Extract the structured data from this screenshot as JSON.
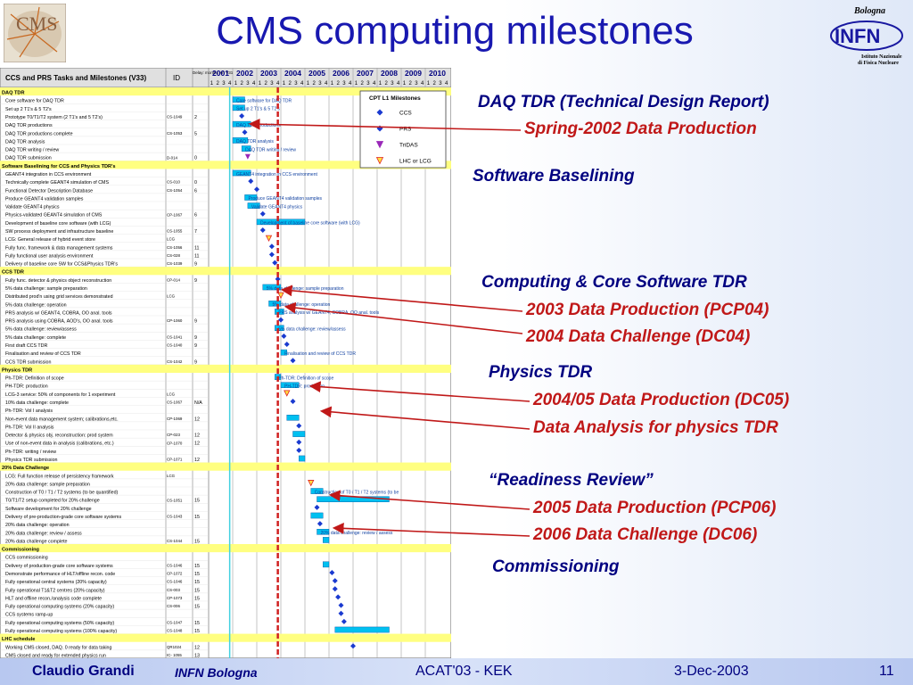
{
  "slide": {
    "title": "CMS computing milestones",
    "logos": {
      "cms_text": "CMS",
      "infn_top": "Bologna",
      "infn_name": "INFN",
      "infn_sub1": "Istituto Nazionale",
      "infn_sub2": "di Fisica Nucleare"
    }
  },
  "gantt": {
    "header_title": "CCS and PRS Tasks and Milestones (V33)",
    "id_label": "ID",
    "delay_label": "Delay: months wrt V31",
    "years": [
      "2001",
      "2002",
      "2003",
      "2004",
      "2005",
      "2006",
      "2007",
      "2008",
      "2009",
      "2010"
    ],
    "quarter_labels": [
      "1",
      "2",
      "3",
      "4"
    ],
    "legend": {
      "title": "CPT L1 Milestones",
      "items": [
        {
          "label": "CCS",
          "color": "#1a3ad0",
          "shape": "diamond"
        },
        {
          "label": "PRS",
          "color": "#1a3ad0",
          "shape": "diamond"
        },
        {
          "label": "TriDAS",
          "color": "#9a28b8",
          "shape": "triangle"
        },
        {
          "label": "LHC or LCG",
          "color": "#e02020",
          "shape": "triangle"
        }
      ]
    },
    "rows": [
      {
        "type": "section",
        "name": "DAQ TDR"
      },
      {
        "name": "Core software for DAQ TDR",
        "id": "",
        "delay": "",
        "bar": "Core software for DAQ TDR"
      },
      {
        "name": "Set up 2 T1's & 5 T2's",
        "id": "",
        "delay": "",
        "bar": "Set up 2 T1's & 5 T2's"
      },
      {
        "name": "Prototype T0/T1/T2 system (2 T1's and 5 T2's)",
        "id": "CS-1049",
        "delay": "2",
        "bar": ""
      },
      {
        "name": "DAQ TDR productions",
        "id": "",
        "delay": "",
        "bar": "DAQ TDR productions"
      },
      {
        "name": "DAQ TDR productions complete",
        "id": "CS-1053",
        "delay": "5",
        "bar": ""
      },
      {
        "name": "DAQ TDR  analysis",
        "id": "",
        "delay": "",
        "bar": "DAQ TDR  analysis"
      },
      {
        "name": "DAQ TDR writing / review",
        "id": "",
        "delay": "",
        "bar": "DAQ TDR writing / review"
      },
      {
        "name": "DAQ TDR submission",
        "id": "D-014",
        "delay": "0",
        "bar": ""
      },
      {
        "type": "section",
        "name": "Software Baselining for CCS and Physics TDR's"
      },
      {
        "name": "GEANT4 integration in CCS environment",
        "id": "",
        "delay": "",
        "bar": "GEANT4 integration in CCS environment"
      },
      {
        "name": "Technically complete GEANT4 simulation of CMS",
        "id": "CS-010",
        "delay": "0",
        "bar": ""
      },
      {
        "name": "Functional Detector Description Database",
        "id": "CS-1054",
        "delay": "6",
        "bar": ""
      },
      {
        "name": "Produce GEANT4 validation samples",
        "id": "",
        "delay": "",
        "bar": "Produce GEANT4 validation samples"
      },
      {
        "name": "Validate GEANT4 physics",
        "id": "",
        "delay": "",
        "bar": "Validate GEANT4 physics"
      },
      {
        "name": "Physics-validated GEANT4 simulation of CMS",
        "id": "CP-1067",
        "delay": "6",
        "bar": ""
      },
      {
        "name": "Development of baseline core software (with LCG)",
        "id": "",
        "delay": "",
        "bar": "Development of baseline core software (with LCG)"
      },
      {
        "name": "SW process deployment and infrastructure baseline",
        "id": "CS-1055",
        "delay": "7",
        "bar": ""
      },
      {
        "name": "LCG: General release of hybrid event store",
        "id": "LCG",
        "delay": "",
        "bar": ""
      },
      {
        "name": "Fully func. framework & data management systems",
        "id": "CS-1056",
        "delay": "11",
        "bar": ""
      },
      {
        "name": "Fully functional user analysis environment",
        "id": "CS-028",
        "delay": "11",
        "bar": ""
      },
      {
        "name": "Delivery of baseline core SW for CCS&Physics TDR's",
        "id": "CS-1039",
        "delay": "9",
        "bar": ""
      },
      {
        "type": "section",
        "name": "CCS TDR"
      },
      {
        "name": "Fully func. detector & physics object reconstruction",
        "id": "CP-014",
        "delay": "9",
        "bar": ""
      },
      {
        "name": "5% data challenge: sample preparation",
        "id": "",
        "delay": "",
        "bar": "5% data challenge: sample preparation"
      },
      {
        "name": "Distributed prod'n using grid services demonstrated",
        "id": "LCG",
        "delay": "",
        "bar": ""
      },
      {
        "name": "5% data challenge:  operation",
        "id": "",
        "delay": "",
        "bar": "5% data challenge:  operation"
      },
      {
        "name": "PRS analysis w/ GEANT4, COBRA, OO anal. tools",
        "id": "",
        "delay": "",
        "bar": "PRS analysis w/ GEANT4, COBRA, OO anal. tools"
      },
      {
        "name": "PRS analysis using COBRA, AOD's, OO anal. tools",
        "id": "CP-1060",
        "delay": "9",
        "bar": ""
      },
      {
        "name": "5% data challenge:  review/assess",
        "id": "",
        "delay": "",
        "bar": "5% data challenge:  review/assess"
      },
      {
        "name": "5% data challenge: complete",
        "id": "CS-1041",
        "delay": "9",
        "bar": ""
      },
      {
        "name": "First draft CCS TDR",
        "id": "CS-1040",
        "delay": "9",
        "bar": ""
      },
      {
        "name": "Finalisation and review of CCS TDR",
        "id": "",
        "delay": "",
        "bar": "Finalisation and review of CCS TDR"
      },
      {
        "name": "CCS TDR submission",
        "id": "CS-1042",
        "delay": "9",
        "bar": ""
      },
      {
        "type": "section",
        "name": "Physics TDR"
      },
      {
        "name": "Ph-TDR: Definition of scope",
        "id": "",
        "delay": "",
        "bar": "Ph-TDR: Definition of scope"
      },
      {
        "name": "PH-TDR:  production",
        "id": "",
        "delay": "",
        "bar": "PH-TDR:  production"
      },
      {
        "name": "LCG-3 service:  50% of components for 1 experiment",
        "id": "LCG",
        "delay": "",
        "bar": ""
      },
      {
        "name": "10%  data challenge: complete",
        "id": "CS-1067",
        "delay": "N/A",
        "bar": ""
      },
      {
        "name": "Ph-TDR: Vol I analysis",
        "id": "",
        "delay": "",
        "bar": "TDR: Vol I analysis"
      },
      {
        "name": "Non-event data management system; calibrations,etc.",
        "id": "CP-1069",
        "delay": "12",
        "bar": ""
      },
      {
        "name": "Ph-TDR: Vol II analysis",
        "id": "",
        "delay": "",
        "bar": "TDR: Vol II analysis"
      },
      {
        "name": "Detector & physics obj. reconstruction: prod system",
        "id": "CP-023",
        "delay": "12",
        "bar": ""
      },
      {
        "name": "Use of non-event data in analysis (calibrations, etc.)",
        "id": "CP-1070",
        "delay": "12",
        "bar": ""
      },
      {
        "name": "Ph-TDR: writing / review",
        "id": "",
        "delay": "",
        "bar": "Ph-TDR: writing / review"
      },
      {
        "name": "Physics TDR submission",
        "id": "CP-1071",
        "delay": "12",
        "bar": ""
      },
      {
        "type": "section",
        "name": "20% Data Challenge"
      },
      {
        "name": "LCG: Full function release of persistency framework",
        "id": "LCG",
        "delay": "",
        "bar": ""
      },
      {
        "name": "20% data challenge: sample preparation",
        "id": "",
        "delay": "",
        "bar": "20% data challenge: sample preparation"
      },
      {
        "name": "Construction of T0 / T1 / T2  systems (to be quantified)",
        "id": "",
        "delay": "",
        "bar": "Construction of T0 / T1 / T2  systems (to be"
      },
      {
        "name": "T0/T1/T2 setup completed for 20% challenge",
        "id": "CS-1051",
        "delay": "15",
        "bar": ""
      },
      {
        "name": "Software development for 20% challenge",
        "id": "",
        "delay": "",
        "bar": "Software development for 20% challenge"
      },
      {
        "name": "Delivery of pre-production-grade core software systems",
        "id": "CS-1043",
        "delay": "15",
        "bar": ""
      },
      {
        "name": "20% data challenge:  operation",
        "id": "",
        "delay": "",
        "bar": "20% data challenge:  operation"
      },
      {
        "name": "20% data challenge:  review / assess",
        "id": "",
        "delay": "",
        "bar": "20% data challenge:  review / assess"
      },
      {
        "name": "20%  data challenge complete",
        "id": "CS-1044",
        "delay": "15",
        "bar": ""
      },
      {
        "type": "section",
        "name": "Commissioning"
      },
      {
        "name": "CCS commissioning",
        "id": "",
        "delay": "",
        "bar": "CCS commissioning"
      },
      {
        "name": "Delivery of production-grade core software systems",
        "id": "CS-1046",
        "delay": "15",
        "bar": ""
      },
      {
        "name": "Demonstrate performance of HLT/offline recon. code",
        "id": "CP-1072",
        "delay": "15",
        "bar": ""
      },
      {
        "name": "Fully operational central systems (20% capacity)",
        "id": "CS-1046",
        "delay": "15",
        "bar": ""
      },
      {
        "name": "Fully operational T1&T2 centres (20% capacity)",
        "id": "CS-003",
        "delay": "15",
        "bar": ""
      },
      {
        "name": "HLT and offline recon./analysis code complete",
        "id": "CP-1073",
        "delay": "15",
        "bar": ""
      },
      {
        "name": "Fully operational computing systems (20% capacity)",
        "id": "CS-006",
        "delay": "15",
        "bar": ""
      },
      {
        "name": "CCS systems ramp-up",
        "id": "",
        "delay": "",
        "bar": "CCS system"
      },
      {
        "name": "Fully operational computing systems (50% capacity)",
        "id": "CS-1047",
        "delay": "15",
        "bar": ""
      },
      {
        "name": "Fully operational computing systems (100% capacity)",
        "id": "CS-1048",
        "delay": "15",
        "bar": ""
      },
      {
        "type": "section",
        "name": "LHC schedule"
      },
      {
        "name": "Working CMS closed, DAQ. 0 ready for data taking",
        "id": "QR1024",
        "delay": "12",
        "bar": ""
      },
      {
        "name": "CMS closed and ready for extended physics run",
        "id": "IC- 1055",
        "delay": "13",
        "bar": ""
      }
    ]
  },
  "annotations": [
    {
      "key": "daq_tdr",
      "text": "DAQ TDR (Technical Design Report)",
      "style": "head"
    },
    {
      "key": "spring2002",
      "text": "Spring-2002 Data Production",
      "style": "sub"
    },
    {
      "key": "sw_base",
      "text": "Software Baselining",
      "style": "head"
    },
    {
      "key": "comp_tdr",
      "text": "Computing & Core Software TDR",
      "style": "head"
    },
    {
      "key": "pcp04",
      "text": "2003 Data Production (PCP04)",
      "style": "sub"
    },
    {
      "key": "dc04",
      "text": "2004 Data Challenge (DC04)",
      "style": "sub"
    },
    {
      "key": "phys_tdr",
      "text": "Physics TDR",
      "style": "head"
    },
    {
      "key": "dc05",
      "text": "2004/05 Data Production (DC05)",
      "style": "sub"
    },
    {
      "key": "analysis",
      "text": "Data Analysis for physics TDR",
      "style": "sub"
    },
    {
      "key": "readiness",
      "text": "“Readiness Review”",
      "style": "head"
    },
    {
      "key": "pcp06",
      "text": "2005 Data Production (PCP06)",
      "style": "sub"
    },
    {
      "key": "dc06",
      "text": "2006 Data Challenge (DC06)",
      "style": "sub"
    },
    {
      "key": "commissioning",
      "text": "Commissioning",
      "style": "head"
    }
  ],
  "footer": {
    "author": "Claudio Grandi",
    "affiliation": "INFN Bologna",
    "conference": "ACAT'03 - KEK",
    "date": "3-Dec-2003",
    "page": "11"
  },
  "colors": {
    "title": "#1818b0",
    "heading": "#000080",
    "subheading": "#c01818",
    "bar": "#00c0f0",
    "today_line": "#d02020",
    "now_line": "#40d0e0"
  }
}
